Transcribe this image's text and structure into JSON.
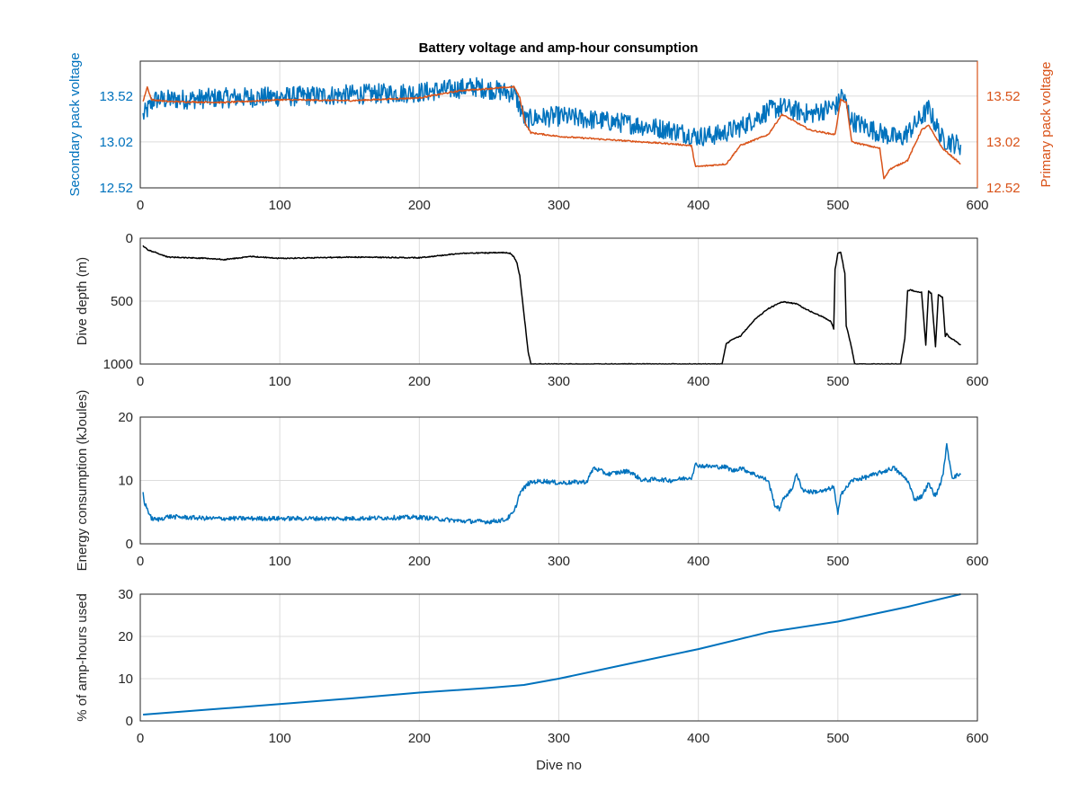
{
  "figure": {
    "title": "Battery voltage and amp-hour consumption",
    "colors": {
      "blue": "#0072BD",
      "orange": "#D95319",
      "black": "#000000",
      "axis": "#262626",
      "grid": "#dcdcdc",
      "background": "#ffffff"
    }
  },
  "chart_data": [
    {
      "type": "line",
      "title": "Battery voltage and amp-hour consumption",
      "xlabel": "",
      "ylabel_left": "Secondary pack voltage",
      "ylabel_right": "Primary pack voltage",
      "xlim": [
        0,
        600
      ],
      "ylim_left": [
        12.52,
        13.9
      ],
      "ylim_right": [
        12.52,
        13.9
      ],
      "xticks": [
        "0",
        "100",
        "200",
        "300",
        "400",
        "500",
        "600"
      ],
      "yticks_left": [
        "12.52",
        "13.02",
        "13.52"
      ],
      "yticks_right": [
        "12.52",
        "13.02",
        "13.52"
      ],
      "grid": true,
      "series": [
        {
          "axis": "left",
          "color": "#0072BD",
          "noise": 0.11,
          "x": [
            2,
            10,
            20,
            60,
            120,
            200,
            240,
            268,
            276,
            282,
            300,
            350,
            380,
            400,
            415,
            430,
            450,
            460,
            480,
            500,
            503,
            510,
            530,
            545,
            555,
            565,
            575,
            588
          ],
          "values": [
            13.3,
            13.48,
            13.48,
            13.5,
            13.52,
            13.56,
            13.62,
            13.55,
            13.25,
            13.28,
            13.3,
            13.22,
            13.15,
            13.08,
            13.1,
            13.18,
            13.36,
            13.4,
            13.32,
            13.42,
            13.55,
            13.25,
            13.12,
            13.05,
            13.2,
            13.38,
            13.05,
            12.98
          ]
        },
        {
          "axis": "right",
          "color": "#D95319",
          "noise": 0.008,
          "x": [
            2,
            5,
            8,
            20,
            60,
            100,
            150,
            200,
            230,
            250,
            268,
            272,
            276,
            280,
            300,
            350,
            380,
            395,
            398,
            420,
            430,
            450,
            460,
            480,
            498,
            502,
            506,
            510,
            530,
            533,
            537,
            550,
            560,
            565,
            575,
            588
          ],
          "values": [
            13.46,
            13.62,
            13.48,
            13.46,
            13.45,
            13.48,
            13.47,
            13.5,
            13.58,
            13.6,
            13.62,
            13.5,
            13.22,
            13.12,
            13.08,
            13.03,
            13.0,
            12.98,
            12.75,
            12.78,
            12.98,
            13.1,
            13.32,
            13.15,
            13.1,
            13.48,
            13.45,
            13.02,
            12.95,
            12.62,
            12.72,
            12.82,
            13.15,
            13.2,
            12.95,
            12.78
          ]
        }
      ]
    },
    {
      "type": "line",
      "xlabel": "",
      "ylabel": "Dive depth (m)",
      "xlim": [
        0,
        600
      ],
      "ylim": [
        0,
        1000
      ],
      "y_reversed": true,
      "xticks": [
        "0",
        "100",
        "200",
        "300",
        "400",
        "500",
        "600"
      ],
      "yticks": [
        "0",
        "500",
        "1000"
      ],
      "grid": true,
      "series": [
        {
          "color": "#000000",
          "noise": 4,
          "x": [
            2,
            5,
            10,
            20,
            50,
            60,
            80,
            100,
            150,
            200,
            230,
            260,
            265,
            268,
            270,
            272,
            275,
            278,
            280,
            300,
            350,
            400,
            417,
            420,
            425,
            430,
            440,
            450,
            460,
            470,
            480,
            490,
            495,
            497,
            498,
            500,
            502,
            505,
            506,
            508,
            510,
            512,
            515,
            540,
            545,
            548,
            550,
            552,
            555,
            560,
            563,
            565,
            567,
            570,
            572,
            575,
            577,
            578,
            580,
            585,
            588
          ],
          "values": [
            60,
            90,
            110,
            150,
            160,
            170,
            145,
            160,
            150,
            155,
            120,
            115,
            120,
            150,
            200,
            300,
            600,
            900,
            1000,
            1000,
            1000,
            1000,
            1000,
            840,
            800,
            780,
            650,
            560,
            505,
            520,
            580,
            630,
            660,
            720,
            250,
            120,
            110,
            280,
            700,
            780,
            880,
            1000,
            1000,
            1000,
            1000,
            800,
            420,
            410,
            420,
            430,
            850,
            420,
            440,
            860,
            450,
            470,
            780,
            760,
            790,
            820,
            850
          ]
        }
      ]
    },
    {
      "type": "line",
      "xlabel": "",
      "ylabel": "Energy consumption (kJoules)",
      "xlim": [
        0,
        600
      ],
      "ylim": [
        0,
        20
      ],
      "xticks": [
        "0",
        "100",
        "200",
        "300",
        "400",
        "500",
        "600"
      ],
      "yticks": [
        "0",
        "10",
        "20"
      ],
      "grid": true,
      "series": [
        {
          "color": "#0072BD",
          "noise": 0.35,
          "x": [
            2,
            3,
            8,
            12,
            20,
            50,
            100,
            150,
            200,
            230,
            250,
            262,
            268,
            272,
            278,
            282,
            290,
            300,
            320,
            325,
            335,
            350,
            360,
            370,
            380,
            395,
            398,
            402,
            410,
            420,
            425,
            430,
            440,
            450,
            455,
            458,
            462,
            467,
            470,
            475,
            480,
            490,
            497,
            500,
            502,
            505,
            510,
            520,
            530,
            540,
            550,
            555,
            560,
            565,
            570,
            575,
            578,
            582,
            588
          ],
          "values": [
            8,
            6.5,
            4,
            3.8,
            4.3,
            4.0,
            4.0,
            4.0,
            4.2,
            3.6,
            3.5,
            3.8,
            5,
            8,
            9.5,
            9.8,
            9.9,
            9.6,
            9.8,
            12,
            11,
            11.5,
            10,
            10.2,
            10,
            10.5,
            12.5,
            12.3,
            12.2,
            12.1,
            11.5,
            12,
            11,
            10,
            6,
            5.5,
            7.5,
            8.5,
            11,
            8.5,
            8.2,
            8.3,
            9,
            4.5,
            8,
            8.5,
            10,
            10.5,
            11.2,
            12,
            10,
            7,
            7.5,
            9.5,
            7.5,
            10.5,
            15.5,
            10.5,
            11
          ]
        }
      ]
    },
    {
      "type": "line",
      "xlabel": "Dive no",
      "ylabel": "% of amp-hours used",
      "xlim": [
        0,
        600
      ],
      "ylim": [
        0,
        30
      ],
      "xticks": [
        "0",
        "100",
        "200",
        "300",
        "400",
        "500",
        "600"
      ],
      "yticks": [
        "0",
        "10",
        "20",
        "30"
      ],
      "grid": true,
      "series": [
        {
          "color": "#0072BD",
          "noise": 0,
          "x": [
            2,
            50,
            100,
            150,
            200,
            250,
            275,
            300,
            350,
            400,
            450,
            500,
            550,
            588
          ],
          "values": [
            1.5,
            2.7,
            4.0,
            5.3,
            6.7,
            7.8,
            8.5,
            10.0,
            13.5,
            17.0,
            21.0,
            23.5,
            27.0,
            30.0
          ]
        }
      ]
    }
  ]
}
